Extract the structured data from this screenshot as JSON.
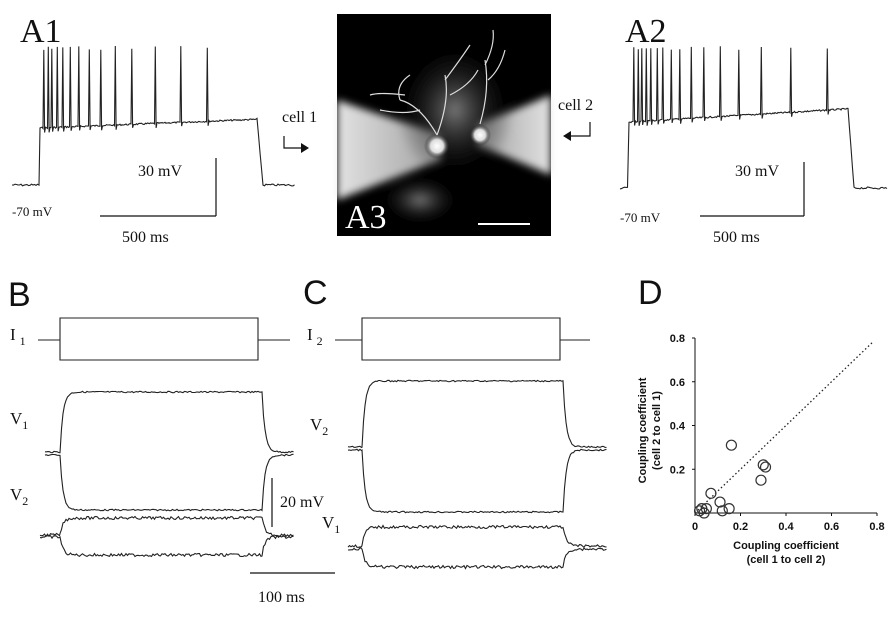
{
  "panels": {
    "a1": {
      "label": "A1",
      "scale_v": "30 mV",
      "rest": "-70 mV",
      "scale_t": "500 ms",
      "cell": "cell 1"
    },
    "a2": {
      "label": "A2",
      "scale_v": "30 mV",
      "rest": "-70 mV",
      "scale_t": "500 ms",
      "cell": "cell 2"
    },
    "a3": {
      "label": "A3"
    },
    "b": {
      "label": "B",
      "current": {
        "main": "I",
        "sub": "1"
      },
      "v_top": {
        "main": "V",
        "sub": "1"
      },
      "v_bottom": {
        "main": "V",
        "sub": "2"
      },
      "scale_v": "20 mV",
      "scale_t": "100 ms"
    },
    "c": {
      "label": "C",
      "current": {
        "main": "I",
        "sub": "2"
      },
      "v_top": {
        "main": "V",
        "sub": "2"
      },
      "v_bottom": {
        "main": "V",
        "sub": "1"
      }
    },
    "d": {
      "label": "D"
    }
  },
  "chart_data": {
    "type": "scatter",
    "x_label": [
      "Coupling coefficient",
      "(cell 1 to cell 2)"
    ],
    "y_label": [
      "Coupling coefficient",
      "(cell 2 to cell 1)"
    ],
    "x": [
      0.02,
      0.03,
      0.04,
      0.05,
      0.07,
      0.11,
      0.12,
      0.15,
      0.16,
      0.29,
      0.3,
      0.31
    ],
    "values": [
      0.01,
      0.02,
      0.0,
      0.02,
      0.09,
      0.05,
      0.01,
      0.02,
      0.31,
      0.15,
      0.22,
      0.21
    ],
    "color": "#333333",
    "xlim": [
      0,
      0.8
    ],
    "ylim": [
      0,
      0.8
    ],
    "xticks": [
      0,
      0.2,
      0.4,
      0.6,
      0.8
    ],
    "yticks": [
      0.2,
      0.4,
      0.6,
      0.8
    ]
  }
}
